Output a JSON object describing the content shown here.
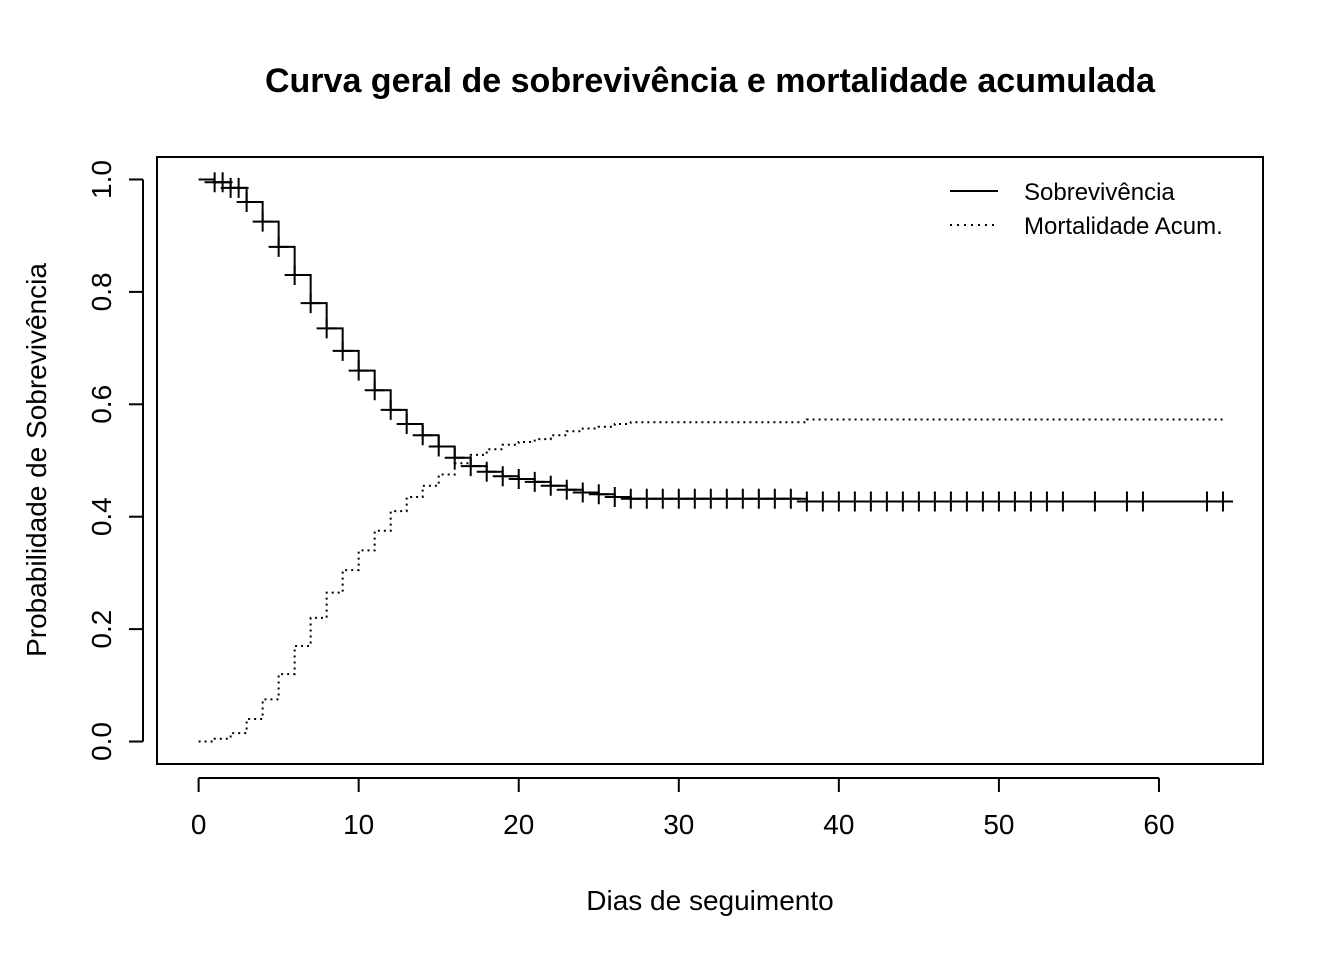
{
  "chart_data": {
    "type": "line",
    "title": "Curva geral de sobrevivência e mortalidade acumulada",
    "xlabel": "Dias de seguimento",
    "ylabel": "Probabilidade de Sobrevivência",
    "xlim": [
      -2.6,
      66.5
    ],
    "ylim": [
      -0.04,
      1.04
    ],
    "x_ticks": [
      0,
      10,
      20,
      30,
      40,
      50,
      60
    ],
    "y_ticks": [
      0.0,
      0.2,
      0.4,
      0.6,
      0.8,
      1.0
    ],
    "x_tick_labels": [
      "0",
      "10",
      "20",
      "30",
      "40",
      "50",
      "60"
    ],
    "y_tick_labels": [
      "0.0",
      "0.2",
      "0.4",
      "0.6",
      "0.8",
      "1.0"
    ],
    "grid": false,
    "legend_position": "top-right",
    "series": [
      {
        "name": "Sobrevivência",
        "line_style": "solid",
        "step": true,
        "x": [
          0,
          1,
          2,
          3,
          4,
          5,
          6,
          7,
          8,
          9,
          10,
          11,
          12,
          13,
          14,
          15,
          16,
          17,
          18,
          19,
          20,
          21,
          22,
          23,
          24,
          25,
          26,
          27,
          38,
          64.5
        ],
        "y": [
          1.0,
          0.995,
          0.985,
          0.96,
          0.925,
          0.88,
          0.83,
          0.78,
          0.735,
          0.695,
          0.66,
          0.625,
          0.59,
          0.565,
          0.545,
          0.525,
          0.505,
          0.49,
          0.48,
          0.472,
          0.467,
          0.462,
          0.455,
          0.448,
          0.443,
          0.44,
          0.435,
          0.432,
          0.427,
          0.427
        ],
        "censor_x": [
          1,
          1.5,
          2,
          2.5,
          3,
          4,
          5,
          6,
          7,
          8,
          9,
          10,
          11,
          12,
          13,
          14,
          15,
          16,
          17,
          18,
          19,
          20,
          21,
          22,
          23,
          24,
          25,
          26,
          27,
          28,
          29,
          30,
          31,
          32,
          33,
          34,
          35,
          36,
          37,
          38,
          39,
          40,
          41,
          42,
          43,
          44,
          45,
          46,
          47,
          48,
          49,
          50,
          51,
          52,
          53,
          54,
          56,
          58,
          59,
          63,
          64
        ]
      },
      {
        "name": "Mortalidade Acum.",
        "line_style": "dotted",
        "step": true,
        "x": [
          0,
          1,
          2,
          3,
          4,
          5,
          6,
          7,
          8,
          9,
          10,
          11,
          12,
          13,
          14,
          15,
          16,
          17,
          18,
          19,
          20,
          21,
          22,
          23,
          24,
          25,
          26,
          27,
          38,
          64
        ],
        "y": [
          0.0,
          0.005,
          0.015,
          0.04,
          0.075,
          0.12,
          0.17,
          0.22,
          0.265,
          0.305,
          0.34,
          0.375,
          0.41,
          0.435,
          0.455,
          0.475,
          0.495,
          0.51,
          0.52,
          0.528,
          0.533,
          0.538,
          0.545,
          0.552,
          0.557,
          0.56,
          0.565,
          0.568,
          0.573,
          0.573
        ]
      }
    ]
  }
}
